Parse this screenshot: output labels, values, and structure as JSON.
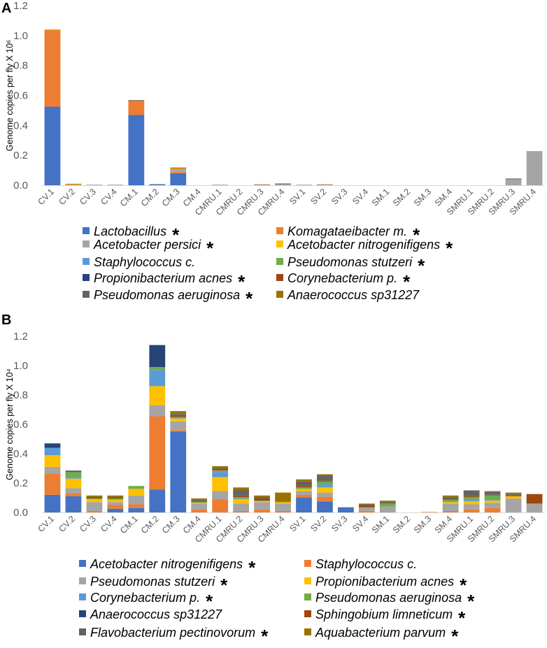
{
  "chart_data": [
    {
      "panel": "A",
      "type": "bar",
      "stacked": true,
      "ylabel": "Genome copies per fly X 10⁶",
      "ylim": [
        0,
        1.2
      ],
      "yticks": [
        "0.0",
        "0.2",
        "0.4",
        "0.6",
        "0.8",
        "1.0",
        "1.2"
      ],
      "categories": [
        "CV.1",
        "CV.2",
        "CV.3",
        "CV.4",
        "CM.1",
        "CM.2",
        "CM.3",
        "CM.4",
        "CMRU.1",
        "CMRU.2",
        "CMRU.3",
        "CMRU.4",
        "SV.1",
        "SV.2",
        "SV.3",
        "SV.4",
        "SM.1",
        "SM.2",
        "SM.3",
        "SM.4",
        "SMRU.1",
        "SMRU.2",
        "SMRU.3",
        "SMRU.4"
      ],
      "series": [
        {
          "name": "Lactobacillus",
          "star": "*",
          "color": "#4472c4",
          "values": [
            0.525,
            0,
            0,
            0,
            0.47,
            0.005,
            0.08,
            0,
            0,
            0,
            0,
            0,
            0,
            0,
            0,
            0,
            0,
            0,
            0,
            0,
            0,
            0,
            0,
            0
          ]
        },
        {
          "name": "Komagataeibacter m.",
          "star": "*",
          "color": "#ed7d31",
          "values": [
            0.51,
            0.004,
            0,
            0,
            0.09,
            0,
            0.01,
            0,
            0,
            0,
            0,
            0,
            0,
            0,
            0,
            0,
            0,
            0,
            0,
            0,
            0,
            0,
            0,
            0
          ]
        },
        {
          "name": "Acetobacter persici",
          "star": "*",
          "color": "#a5a5a5",
          "values": [
            0,
            0.002,
            0.004,
            0.004,
            0,
            0.004,
            0.02,
            0,
            0.004,
            0,
            0.004,
            0.008,
            0.004,
            0.004,
            0,
            0,
            0,
            0,
            0,
            0,
            0,
            0,
            0.04,
            0.225
          ]
        },
        {
          "name": "Acetobacter nitrogenifigens",
          "star": "*",
          "color": "#ffc000",
          "values": [
            0.002,
            0.002,
            0,
            0,
            0.002,
            0,
            0.002,
            0,
            0,
            0,
            0,
            0,
            0,
            0,
            0,
            0,
            0,
            0,
            0,
            0,
            0,
            0,
            0,
            0
          ]
        },
        {
          "name": "Staphylococcus c.",
          "star": "",
          "color": "#5b9bd5",
          "values": [
            0,
            0,
            0,
            0,
            0,
            0,
            0,
            0,
            0,
            0,
            0,
            0,
            0,
            0,
            0,
            0,
            0,
            0,
            0,
            0,
            0,
            0,
            0,
            0
          ]
        },
        {
          "name": "Pseudomonas stutzeri",
          "star": "*",
          "color": "#70ad47",
          "values": [
            0,
            0,
            0,
            0,
            0,
            0,
            0,
            0,
            0,
            0,
            0,
            0,
            0,
            0,
            0,
            0,
            0,
            0,
            0,
            0,
            0,
            0,
            0,
            0.003
          ]
        },
        {
          "name": "Propionibacterium acnes",
          "star": "*",
          "color": "#264478",
          "values": [
            0,
            0,
            0,
            0,
            0.004,
            0,
            0,
            0,
            0,
            0,
            0,
            0,
            0,
            0,
            0,
            0,
            0,
            0,
            0,
            0,
            0,
            0,
            0,
            0
          ]
        },
        {
          "name": "Corynebacterium p.",
          "star": "*",
          "color": "#9e480e",
          "values": [
            0.002,
            0,
            0,
            0,
            0.002,
            0,
            0.003,
            0,
            0,
            0,
            0,
            0,
            0,
            0,
            0,
            0,
            0,
            0,
            0,
            0,
            0,
            0,
            0,
            0
          ]
        },
        {
          "name": "Pseudomonas aeruginosa",
          "star": "*",
          "color": "#636363",
          "values": [
            0,
            0,
            0,
            0,
            0,
            0,
            0,
            0,
            0,
            0,
            0,
            0.002,
            0,
            0,
            0,
            0,
            0,
            0,
            0,
            0,
            0,
            0,
            0.005,
            0
          ]
        },
        {
          "name": "Anaerococcus sp31227",
          "star": "",
          "color": "#997300",
          "values": [
            0,
            0.002,
            0,
            0,
            0,
            0,
            0.003,
            0,
            0,
            0,
            0.002,
            0.002,
            0,
            0.002,
            0,
            0,
            0,
            0,
            0,
            0,
            0,
            0,
            0,
            0
          ]
        }
      ]
    },
    {
      "panel": "B",
      "type": "bar",
      "stacked": true,
      "ylabel": "Genome copies per fly X 10⁴",
      "ylim": [
        0,
        1.2
      ],
      "yticks": [
        "0.0",
        "0.2",
        "0.4",
        "0.6",
        "0.8",
        "1.0",
        "1.2"
      ],
      "categories": [
        "CV.1",
        "CV.2",
        "CV.3",
        "CV.4",
        "CM.1",
        "CM.2",
        "CM.3",
        "CM.4",
        "CMRU.1",
        "CMRU.2",
        "CMRU.3",
        "CMRU.4",
        "SV.1",
        "SV.2",
        "SV.3",
        "SV.4",
        "SM.1",
        "SM.2",
        "SM.3",
        "SM.4",
        "SMRU.1",
        "SMRU.2",
        "SMRU.3",
        "SMRU.4"
      ],
      "series": [
        {
          "name": "Acetobacter nitrogenifigens",
          "star": "*",
          "color": "#4472c4",
          "values": [
            0.12,
            0.11,
            0,
            0.025,
            0.03,
            0.155,
            0.55,
            0,
            0,
            0,
            0,
            0,
            0.1,
            0.075,
            0.035,
            0,
            0,
            0,
            0,
            0,
            0,
            0,
            0,
            0
          ]
        },
        {
          "name": "Staphylococcus c.",
          "star": "",
          "color": "#ed7d31",
          "values": [
            0.145,
            0.02,
            0.01,
            0.025,
            0.025,
            0.5,
            0.01,
            0.02,
            0.09,
            0.01,
            0.02,
            0.01,
            0.02,
            0.03,
            0,
            0.01,
            0,
            0,
            0.003,
            0.01,
            0.02,
            0.03,
            0,
            0
          ]
        },
        {
          "name": "Pseudomonas stutzeri",
          "star": "*",
          "color": "#a5a5a5",
          "values": [
            0.045,
            0.035,
            0.06,
            0.02,
            0.06,
            0.075,
            0.06,
            0.04,
            0.055,
            0.05,
            0.05,
            0.05,
            0.025,
            0.03,
            0,
            0.02,
            0.04,
            0,
            0,
            0.05,
            0.035,
            0.035,
            0.095,
            0.06
          ]
        },
        {
          "name": "Propionibacterium acnes",
          "star": "*",
          "color": "#ffc000",
          "values": [
            0.08,
            0.065,
            0.02,
            0.015,
            0.045,
            0.13,
            0.02,
            0.005,
            0.095,
            0.03,
            0.005,
            0.01,
            0.015,
            0.035,
            0,
            0,
            0,
            0,
            0,
            0.01,
            0.02,
            0.015,
            0.015,
            0
          ]
        },
        {
          "name": "Corynebacterium p.",
          "star": "*",
          "color": "#5b9bd5",
          "values": [
            0.05,
            0.01,
            0,
            0.005,
            0,
            0.11,
            0.005,
            0,
            0.035,
            0.005,
            0,
            0,
            0,
            0.02,
            0,
            0,
            0,
            0,
            0,
            0,
            0.01,
            0.01,
            0,
            0
          ]
        },
        {
          "name": "Pseudomonas aeruginosa",
          "star": "*",
          "color": "#70ad47",
          "values": [
            0,
            0.035,
            0.005,
            0.005,
            0.02,
            0.02,
            0.005,
            0.005,
            0.01,
            0.01,
            0.005,
            0,
            0.01,
            0.02,
            0,
            0.005,
            0.02,
            0,
            0,
            0.015,
            0.02,
            0.025,
            0,
            0
          ]
        },
        {
          "name": "Anaerococcus sp31227",
          "star": "",
          "color": "#264478",
          "values": [
            0.03,
            0.005,
            0,
            0,
            0,
            0.15,
            0,
            0,
            0,
            0,
            0,
            0,
            0,
            0,
            0,
            0,
            0,
            0,
            0,
            0,
            0,
            0,
            0,
            0
          ]
        },
        {
          "name": "Sphingobium limneticum",
          "star": "*",
          "color": "#9e480e",
          "values": [
            0,
            0,
            0.005,
            0.005,
            0,
            0,
            0.005,
            0.005,
            0.005,
            0.01,
            0.015,
            0,
            0.01,
            0.005,
            0,
            0.015,
            0.005,
            0,
            0,
            0.005,
            0.005,
            0.005,
            0.005,
            0.065
          ]
        },
        {
          "name": "Flavobacterium pectinovorum",
          "star": "*",
          "color": "#636363",
          "values": [
            0,
            0.005,
            0.005,
            0.005,
            0,
            0,
            0.015,
            0.01,
            0.01,
            0.035,
            0.01,
            0.005,
            0.03,
            0.035,
            0,
            0.005,
            0.01,
            0,
            0,
            0.01,
            0.04,
            0.02,
            0.01,
            0
          ]
        },
        {
          "name": "Aquabacterium parvum",
          "star": "*",
          "color": "#997300",
          "values": [
            0,
            0,
            0.01,
            0.01,
            0,
            0,
            0.02,
            0.01,
            0.015,
            0.02,
            0.01,
            0.06,
            0.015,
            0.01,
            0,
            0.005,
            0.005,
            0,
            0,
            0.015,
            0,
            0.005,
            0.01,
            0
          ]
        }
      ]
    }
  ]
}
